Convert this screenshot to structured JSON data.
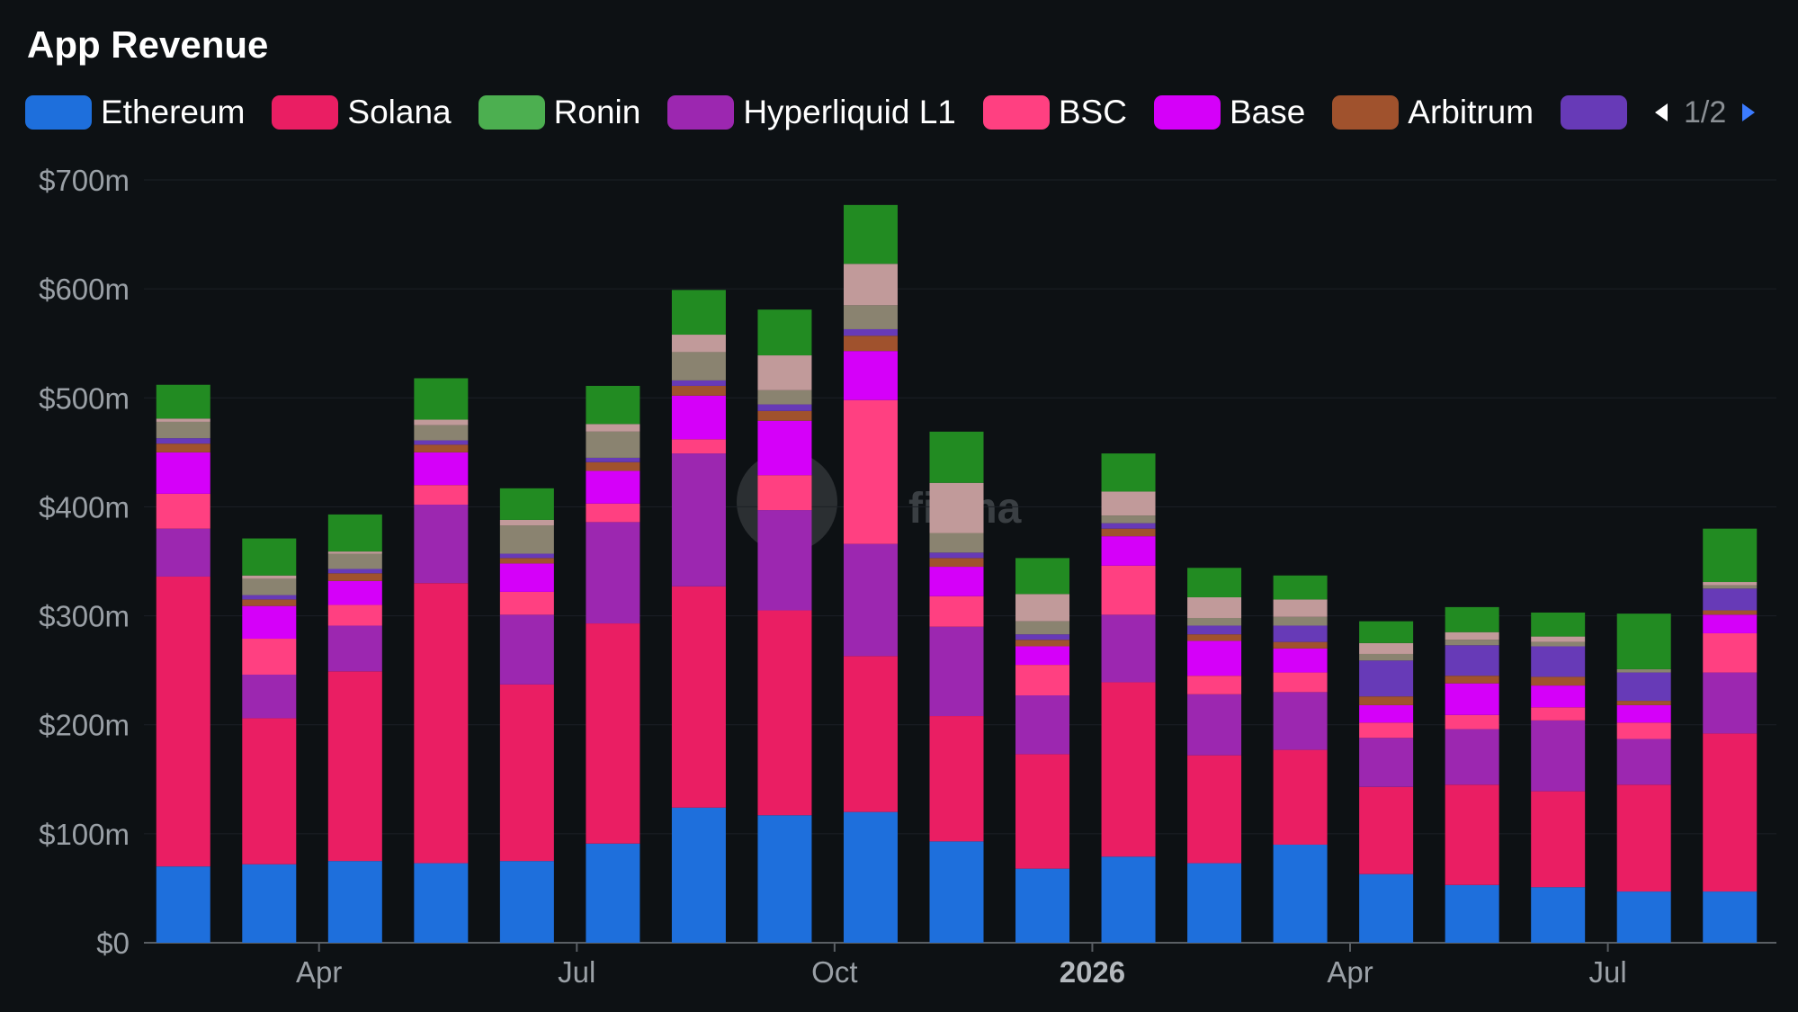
{
  "chart_data": {
    "type": "bar",
    "stacked": true,
    "title": "App Revenue",
    "x_ticks": [
      "Apr",
      "Jul",
      "Oct",
      "2026",
      "Apr",
      "Jul"
    ],
    "y_ticks": [
      "$0",
      "$100m",
      "$200m",
      "$300m",
      "$400m",
      "$500m",
      "$600m",
      "$700m"
    ],
    "ylim": [
      0,
      700
    ],
    "y_unit": "$m",
    "grid": true,
    "legend_position": "top-left",
    "legend_page": "1/2",
    "legend": [
      {
        "name": "Ethereum",
        "color": "#1e6fdc"
      },
      {
        "name": "Solana",
        "color": "#ea1e63"
      },
      {
        "name": "Ronin",
        "color": "#4caf50"
      },
      {
        "name": "Hyperliquid L1",
        "color": "#9c27b0"
      },
      {
        "name": "BSC",
        "color": "#ff4081"
      },
      {
        "name": "Base",
        "color": "#d500f9"
      },
      {
        "name": "Arbitrum",
        "color": "#a0522d"
      },
      {
        "name": "",
        "color": "#673ab7"
      }
    ],
    "categories": [
      "2025-02",
      "2025-03",
      "2025-04",
      "2025-05",
      "2025-06",
      "2025-07",
      "2025-08",
      "2025-09",
      "2025-10",
      "2025-11",
      "2025-12",
      "2026-01",
      "2026-02",
      "2026-03",
      "2026-04",
      "2026-05",
      "2026-06",
      "2026-07",
      "2026-08"
    ],
    "series": [
      {
        "name": "Ethereum",
        "color": "#1e6fdc",
        "values": [
          70,
          72,
          75,
          73,
          75,
          91,
          124,
          117,
          120,
          93,
          68,
          79,
          73,
          90,
          63,
          53,
          51,
          47,
          47
        ]
      },
      {
        "name": "Solana",
        "color": "#ea1e63",
        "values": [
          266,
          134,
          174,
          257,
          162,
          202,
          203,
          188,
          143,
          115,
          105,
          160,
          99,
          87,
          80,
          92,
          88,
          98,
          145
        ]
      },
      {
        "name": "Hyperliquid L1",
        "color": "#9c27b0",
        "values": [
          44,
          40,
          42,
          72,
          64,
          93,
          122,
          92,
          103,
          82,
          54,
          62,
          56,
          53,
          45,
          51,
          65,
          42,
          56
        ]
      },
      {
        "name": "BSC",
        "color": "#ff4081",
        "values": [
          32,
          33,
          19,
          18,
          21,
          17,
          13,
          32,
          132,
          28,
          28,
          45,
          17,
          18,
          14,
          13,
          12,
          15,
          36
        ]
      },
      {
        "name": "Base",
        "color": "#d500f9",
        "values": [
          38,
          30,
          22,
          30,
          26,
          30,
          40,
          50,
          45,
          27,
          17,
          27,
          32,
          22,
          16,
          29,
          20,
          16,
          17
        ]
      },
      {
        "name": "Arbitrum",
        "color": "#a0522d",
        "values": [
          8,
          6,
          7,
          7,
          5,
          8,
          9,
          9,
          14,
          8,
          6,
          7,
          6,
          6,
          8,
          7,
          8,
          4,
          4
        ]
      },
      {
        "name": "",
        "color": "#673ab7",
        "values": [
          5,
          4,
          4,
          4,
          4,
          4,
          5,
          6,
          6,
          5,
          5,
          5,
          8,
          15,
          33,
          28,
          28,
          26,
          20
        ]
      },
      {
        "name": "",
        "color": "#8a8370",
        "values": [
          15,
          15,
          14,
          14,
          26,
          24,
          26,
          13,
          22,
          18,
          12,
          7,
          7,
          8,
          6,
          5,
          4,
          3,
          3
        ]
      },
      {
        "name": "",
        "color": "#c19a9a",
        "values": [
          3,
          3,
          2,
          5,
          5,
          7,
          16,
          32,
          38,
          46,
          25,
          22,
          19,
          16,
          10,
          7,
          5,
          0,
          3
        ]
      },
      {
        "name": "Ronin",
        "color": "#228b22",
        "values": [
          31,
          34,
          34,
          38,
          29,
          35,
          41,
          42,
          54,
          47,
          33,
          35,
          27,
          22,
          20,
          23,
          22,
          51,
          49
        ]
      }
    ]
  }
}
